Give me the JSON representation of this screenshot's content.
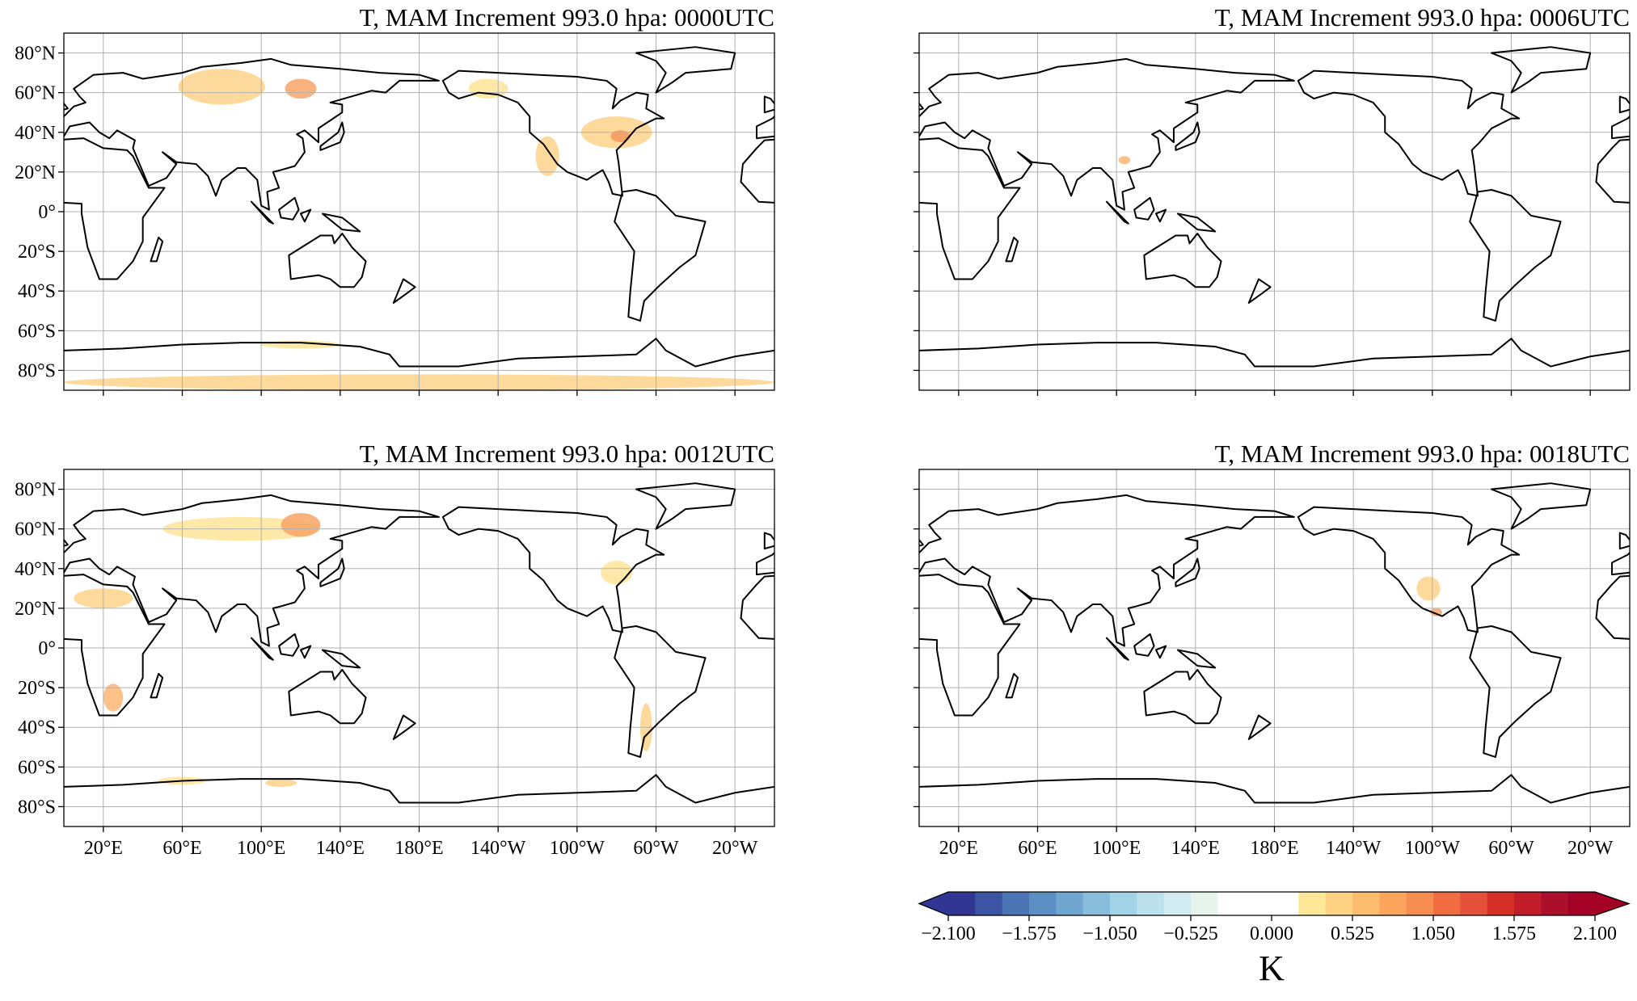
{
  "panels": [
    {
      "title": "T, MAM Increment 993.0 hpa: 0000UTC"
    },
    {
      "title": "T, MAM Increment 993.0 hpa: 0006UTC"
    },
    {
      "title": "T, MAM Increment 993.0 hpa: 0012UTC"
    },
    {
      "title": "T, MAM Increment 993.0 hpa: 0018UTC"
    }
  ],
  "lon_range": [
    0,
    360
  ],
  "lat_range": [
    -90,
    90
  ],
  "lat_ticks": [
    {
      "value": 80,
      "label": "80°N"
    },
    {
      "value": 60,
      "label": "60°N"
    },
    {
      "value": 40,
      "label": "40°N"
    },
    {
      "value": 20,
      "label": "20°N"
    },
    {
      "value": 0,
      "label": "0°"
    },
    {
      "value": -20,
      "label": "20°S"
    },
    {
      "value": -40,
      "label": "40°S"
    },
    {
      "value": -60,
      "label": "60°S"
    },
    {
      "value": -80,
      "label": "80°S"
    }
  ],
  "lon_ticks": [
    {
      "value": 20,
      "label": "20°E"
    },
    {
      "value": 60,
      "label": "60°E"
    },
    {
      "value": 100,
      "label": "100°E"
    },
    {
      "value": 140,
      "label": "140°E"
    },
    {
      "value": 180,
      "label": "180°E"
    },
    {
      "value": 220,
      "label": "140°W"
    },
    {
      "value": 260,
      "label": "100°W"
    },
    {
      "value": 300,
      "label": "60°W"
    },
    {
      "value": 340,
      "label": "20°W"
    }
  ],
  "colorbar": {
    "label": "K",
    "range": [
      -2.1,
      2.1
    ],
    "ticks": [
      {
        "value": -2.1,
        "label": "−2.100"
      },
      {
        "value": -1.575,
        "label": "−1.575"
      },
      {
        "value": -1.05,
        "label": "−1.050"
      },
      {
        "value": -0.525,
        "label": "−0.525"
      },
      {
        "value": 0,
        "label": "0.000"
      },
      {
        "value": 0.525,
        "label": "0.525"
      },
      {
        "value": 1.05,
        "label": "1.050"
      },
      {
        "value": 1.575,
        "label": "1.575"
      },
      {
        "value": 2.1,
        "label": "2.100"
      }
    ],
    "colors": [
      "#313695",
      "#3b54a4",
      "#4a74b4",
      "#5b8fc3",
      "#6fa7d0",
      "#88bedb",
      "#a2d3e6",
      "#bbe1ed",
      "#d1ecf2",
      "#e6f4ec",
      "#ffffff",
      "#ffffff",
      "#ffffff",
      "#fee898",
      "#fed384",
      "#fdbc6e",
      "#fca55d",
      "#f88d52",
      "#f26c42",
      "#e5503b",
      "#d73027",
      "#c21d2b",
      "#ac0f29",
      "#a50026"
    ]
  }
}
